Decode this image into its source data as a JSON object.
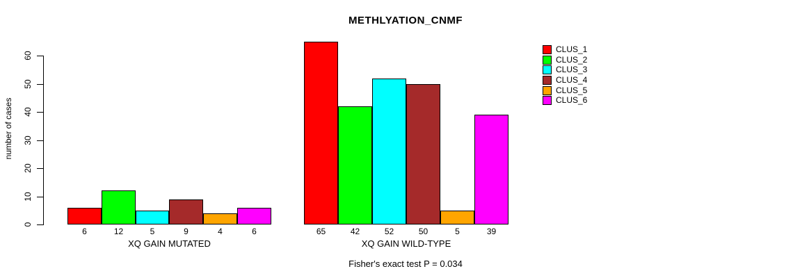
{
  "chart_data": {
    "type": "bar",
    "title": "METHLYATION_CNMF",
    "ylabel": "number of cases",
    "xlabel": "",
    "ylim": [
      0,
      65
    ],
    "yticks": [
      0,
      10,
      20,
      30,
      40,
      50,
      60
    ],
    "grid": false,
    "legend_position": "right-outside",
    "categories": [
      "XQ GAIN MUTATED",
      "XQ GAIN WILD-TYPE"
    ],
    "series": [
      {
        "name": "CLUS_1",
        "color": "#FF0000",
        "values": [
          6,
          65
        ]
      },
      {
        "name": "CLUS_2",
        "color": "#00FF00",
        "values": [
          12,
          42
        ]
      },
      {
        "name": "CLUS_3",
        "color": "#00FFFF",
        "values": [
          5,
          52
        ]
      },
      {
        "name": "CLUS_4",
        "color": "#A52A2A",
        "values": [
          9,
          50
        ]
      },
      {
        "name": "CLUS_5",
        "color": "#FFA500",
        "values": [
          4,
          5
        ]
      },
      {
        "name": "CLUS_6",
        "color": "#FF00FF",
        "values": [
          6,
          39
        ]
      }
    ],
    "bar_value_labels_shown": true,
    "annotation": "Fisher's exact test P = 0.034"
  }
}
